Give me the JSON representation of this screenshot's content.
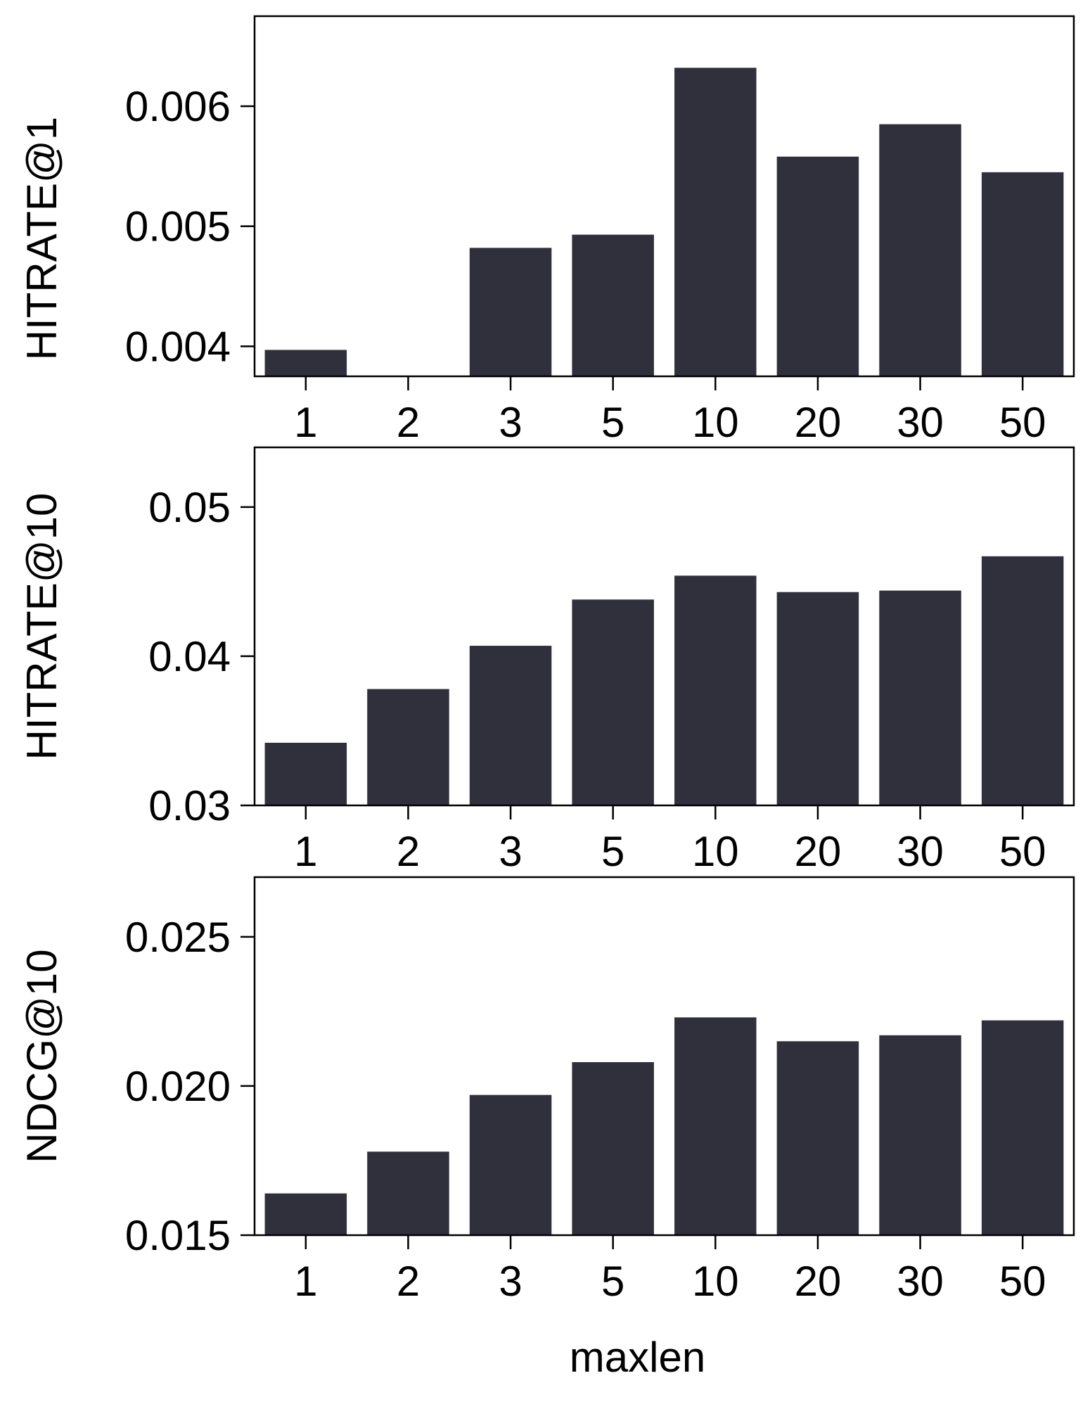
{
  "chart_data": [
    {
      "type": "bar",
      "categories": [
        "1",
        "2",
        "3",
        "5",
        "10",
        "20",
        "30",
        "50"
      ],
      "values": [
        0.00397,
        0.00373,
        0.00482,
        0.00493,
        0.00632,
        0.00558,
        0.00585,
        0.00545
      ],
      "ylabel": "HITRATE@1",
      "xlabel": "",
      "ylim": [
        0.00375,
        0.00675
      ],
      "yticks": [
        0.004,
        0.005,
        0.006
      ],
      "ytick_labels": [
        "0.004",
        "0.005",
        "0.006"
      ],
      "grid": false,
      "bar_color": "#30303c"
    },
    {
      "type": "bar",
      "categories": [
        "1",
        "2",
        "3",
        "5",
        "10",
        "20",
        "30",
        "50"
      ],
      "values": [
        0.0342,
        0.0378,
        0.0407,
        0.0438,
        0.0454,
        0.0443,
        0.0444,
        0.0467
      ],
      "ylabel": "HITRATE@10",
      "xlabel": "",
      "ylim": [
        0.03,
        0.054
      ],
      "yticks": [
        0.03,
        0.04,
        0.05
      ],
      "ytick_labels": [
        "0.03",
        "0.04",
        "0.05"
      ],
      "grid": false,
      "bar_color": "#30303c"
    },
    {
      "type": "bar",
      "categories": [
        "1",
        "2",
        "3",
        "5",
        "10",
        "20",
        "30",
        "50"
      ],
      "values": [
        0.0164,
        0.0178,
        0.0197,
        0.0208,
        0.0223,
        0.0215,
        0.0217,
        0.0222
      ],
      "ylabel": "NDCG@10",
      "xlabel": "maxlen",
      "ylim": [
        0.015,
        0.027
      ],
      "yticks": [
        0.015,
        0.02,
        0.025
      ],
      "ytick_labels": [
        "0.015",
        "0.020",
        "0.025"
      ],
      "grid": false,
      "bar_color": "#30303c"
    }
  ]
}
